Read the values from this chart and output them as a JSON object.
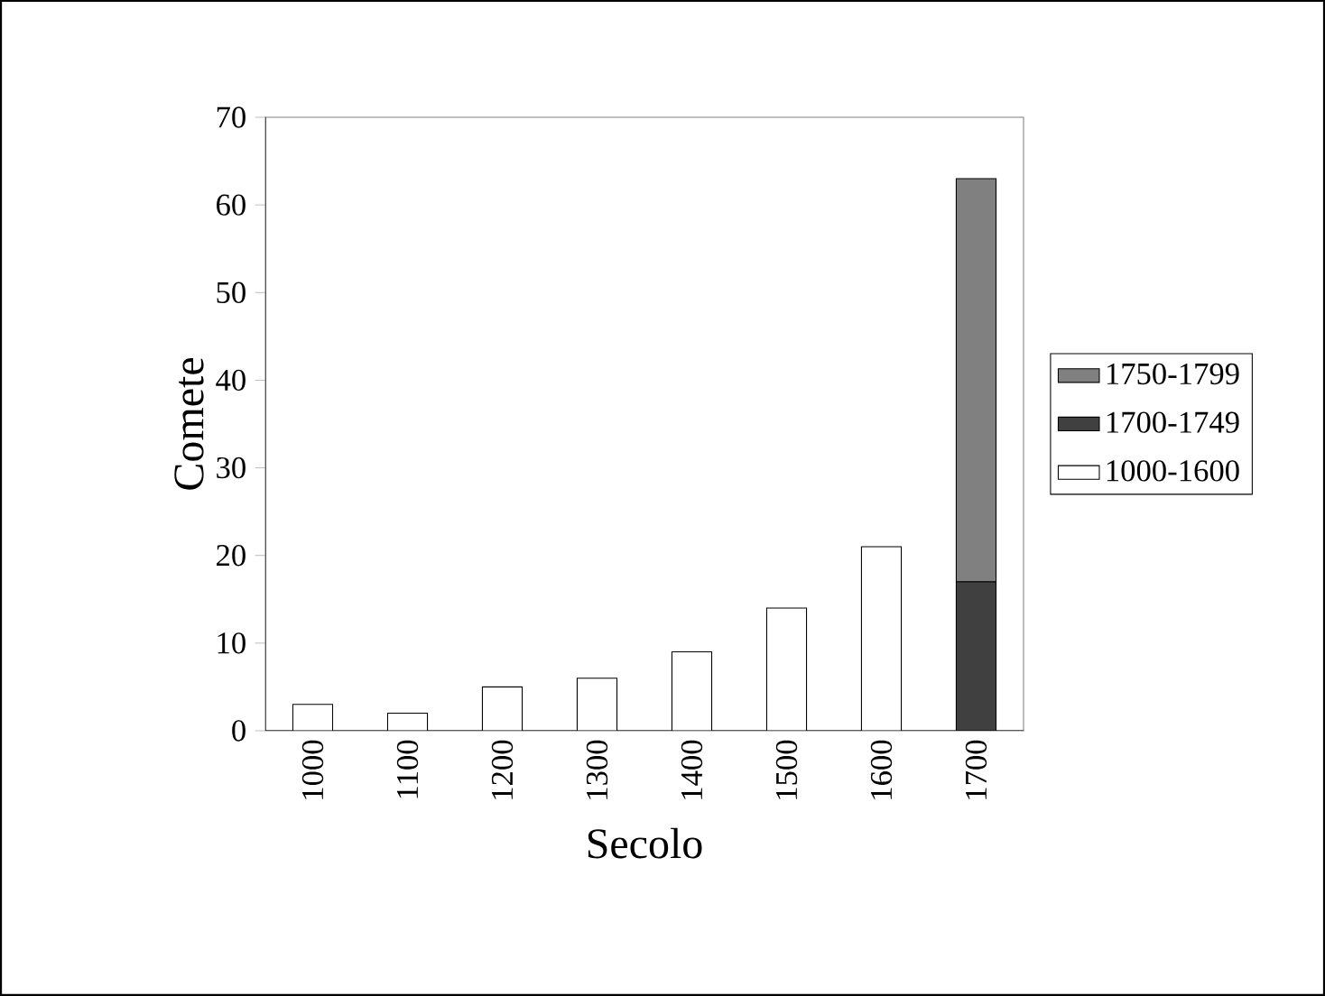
{
  "chart_data": {
    "type": "bar",
    "xlabel": "Secolo",
    "ylabel": "Comete",
    "categories": [
      "1000",
      "1100",
      "1200",
      "1300",
      "1400",
      "1500",
      "1600",
      "1700"
    ],
    "stacked": true,
    "series": [
      {
        "name": "1000-1600",
        "color": "#ffffff",
        "values": [
          3,
          2,
          5,
          6,
          9,
          14,
          21,
          null
        ]
      },
      {
        "name": "1700-1749",
        "color": "#404040",
        "values": [
          null,
          null,
          null,
          null,
          null,
          null,
          null,
          17
        ]
      },
      {
        "name": "1750-1799",
        "color": "#808080",
        "values": [
          null,
          null,
          null,
          null,
          null,
          null,
          null,
          46
        ]
      }
    ],
    "ylim": [
      0,
      70
    ],
    "yticks": [
      0,
      10,
      20,
      30,
      40,
      50,
      60,
      70
    ],
    "legend": "right",
    "grid": false
  }
}
